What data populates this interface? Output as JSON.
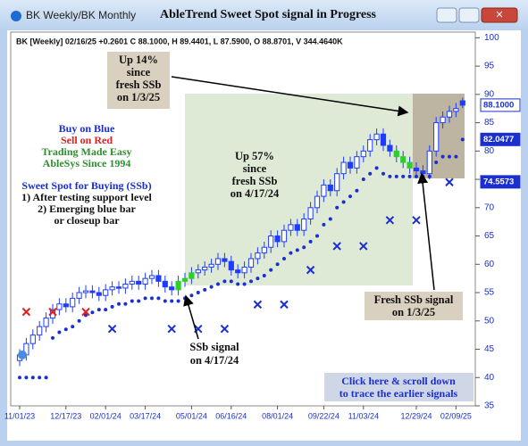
{
  "window_title": "BK Weekly/BK Monthly",
  "chart_data": {
    "type": "candlestick",
    "title": "AbleTrend Sweet Spot signal in Progress",
    "info": "BK [Weekly] 02/16/25 +0.2601 C 88.1000, H 89.4401, L 87.5900, O 88.8701, V 344.4640K",
    "categories": [
      "11/01/23",
      null,
      null,
      null,
      null,
      null,
      null,
      "12/17/23",
      null,
      null,
      null,
      null,
      null,
      "02/01/24",
      null,
      null,
      null,
      null,
      null,
      "03/17/24",
      null,
      null,
      null,
      null,
      null,
      null,
      "05/01/24",
      null,
      null,
      null,
      null,
      null,
      "06/16/24",
      null,
      null,
      null,
      null,
      null,
      null,
      "08/01/24",
      null,
      null,
      null,
      null,
      null,
      null,
      "09/22/24",
      null,
      null,
      null,
      null,
      null,
      "11/03/24",
      null,
      null,
      null,
      null,
      null,
      null,
      null,
      "12/29/24",
      null,
      null,
      null,
      null,
      null,
      "02/09/25",
      null
    ],
    "open": [
      43,
      44,
      46,
      47.5,
      49,
      50.5,
      52,
      53,
      52.5,
      54,
      55,
      55.3,
      55,
      54.5,
      55.5,
      56,
      55.8,
      56.5,
      57,
      56.5,
      57.5,
      58,
      57,
      56,
      55.5,
      57,
      57.5,
      58.5,
      59,
      59.5,
      60,
      61,
      60.5,
      59,
      58.5,
      59.5,
      61,
      62,
      63,
      65,
      64,
      66,
      67,
      66,
      68,
      70,
      72,
      74,
      73,
      76,
      78,
      77,
      79,
      80,
      82,
      83,
      81,
      80,
      79,
      78,
      77,
      76.5,
      76,
      80,
      85,
      86,
      87,
      88.8701
    ],
    "high": [
      45,
      47,
      48.5,
      50,
      51.5,
      53,
      54,
      54,
      55,
      56,
      56.3,
      56.3,
      56,
      56.5,
      57,
      57,
      57.5,
      58,
      58,
      58.5,
      59,
      59,
      58,
      57,
      58,
      58.5,
      59.5,
      60,
      60.5,
      61,
      62,
      62,
      61.5,
      60,
      60.5,
      62,
      63,
      64,
      66,
      66,
      67,
      68,
      68,
      69,
      71,
      73,
      75,
      75,
      77,
      79,
      79,
      80,
      81,
      83,
      84,
      84,
      82,
      81,
      80,
      79,
      78,
      77.5,
      81,
      86,
      87,
      88,
      88.5,
      89.4401
    ],
    "low": [
      42,
      43,
      45,
      46.5,
      48,
      49.5,
      51,
      51.5,
      51.5,
      53,
      54,
      54,
      53.5,
      53.5,
      54.5,
      54.8,
      54.8,
      55.5,
      55.5,
      55.5,
      56.5,
      56,
      55,
      54.5,
      54.5,
      56,
      56.5,
      57.5,
      58,
      58.5,
      59,
      59.5,
      58,
      57.5,
      57.5,
      58.5,
      60,
      61,
      62,
      63,
      63,
      65,
      65,
      65,
      67,
      69,
      71,
      72,
      72,
      75,
      76,
      76,
      78,
      79,
      81,
      80,
      79,
      78,
      77,
      76,
      75.5,
      75,
      75,
      79,
      84,
      85,
      86,
      87.59
    ],
    "close": [
      44,
      46,
      47.5,
      49,
      50.5,
      52,
      53,
      52.5,
      54,
      55,
      55.3,
      55,
      54.5,
      55.5,
      56,
      55.8,
      56.5,
      57,
      56.5,
      57.5,
      58,
      57,
      56,
      55.5,
      57,
      57.5,
      58.5,
      59,
      59.5,
      60,
      61,
      60.5,
      59,
      58.5,
      59.5,
      61,
      62,
      63,
      65,
      64,
      66,
      67,
      66,
      68,
      70,
      72,
      74,
      73,
      76,
      78,
      77,
      79,
      80,
      82,
      83,
      81,
      80,
      79,
      78,
      77,
      76.5,
      76,
      80,
      85,
      86,
      87,
      87.5,
      88.1
    ],
    "stops": [
      40,
      40,
      40,
      40,
      40,
      47,
      48,
      48.5,
      49,
      50,
      51,
      51.5,
      52,
      52,
      52.5,
      53,
      53,
      53.5,
      53.5,
      54,
      54,
      54,
      53.5,
      53.5,
      53.5,
      54,
      54.5,
      55,
      55.5,
      56,
      56.5,
      57,
      57,
      56.5,
      56.5,
      57,
      57.5,
      58,
      59,
      60,
      61,
      62,
      62.5,
      63,
      64,
      65,
      67,
      68,
      70,
      71,
      72,
      73,
      75,
      76,
      77,
      76,
      75.5,
      75.5,
      75.5,
      75.5,
      75.5,
      75.5,
      75.5,
      78,
      79,
      79,
      79,
      82.0477
    ],
    "sell_marks": {
      "color": "#e02020",
      "x": [
        1,
        5,
        10
      ],
      "values": [
        51.6,
        51.6,
        51.6
      ]
    },
    "stop_marks": {
      "color": "#1a2fd0",
      "x": [
        14,
        23,
        27,
        31,
        36,
        40,
        44,
        48,
        52,
        56,
        60,
        65
      ],
      "values": [
        48.6,
        48.6,
        48.6,
        48.6,
        52.9,
        52.9,
        59,
        63.2,
        63.2,
        67.8,
        67.8,
        74.5
      ]
    },
    "green_bars": [
      24,
      25,
      26,
      57,
      58,
      59
    ],
    "up_color": "#ffffff",
    "down_color": "#1e3cff",
    "outline_color": "#1e3cff",
    "green_color": "#2bd02b",
    "stop_color": "#1a2fd0",
    "price_labels": [
      88.1,
      82.0477,
      74.5573
    ],
    "price_value_labels": [
      "88.1000",
      "82.0477",
      "74.5573"
    ],
    "ylim": [
      35,
      101
    ],
    "yticks": [
      35,
      40,
      45,
      50,
      55,
      60,
      65,
      70,
      75,
      80,
      85,
      90,
      95,
      100
    ],
    "annotations": {
      "up14": [
        "Up 14%",
        "since",
        "fresh SSb",
        "on 1/3/25"
      ],
      "up57": [
        "Up 57%",
        "since",
        "fresh SSb",
        "on 4/17/24"
      ],
      "legend": [
        "Buy on Blue",
        "Sell on Red",
        "Trading Made Easy",
        "AbleSys Since 1994"
      ],
      "ssb_rules": [
        "Sweet Spot for Buying (SSb)",
        "1) After testing support level",
        "2) Emerging blue bar",
        "or closeup bar"
      ],
      "ssb_signal": [
        "SSb signal",
        "on 4/17/24"
      ],
      "fresh_ssb": [
        "Fresh SSb signal",
        "on 1/3/25"
      ],
      "click": [
        "Click here & scroll down",
        "to trace the earlier signals"
      ]
    }
  }
}
